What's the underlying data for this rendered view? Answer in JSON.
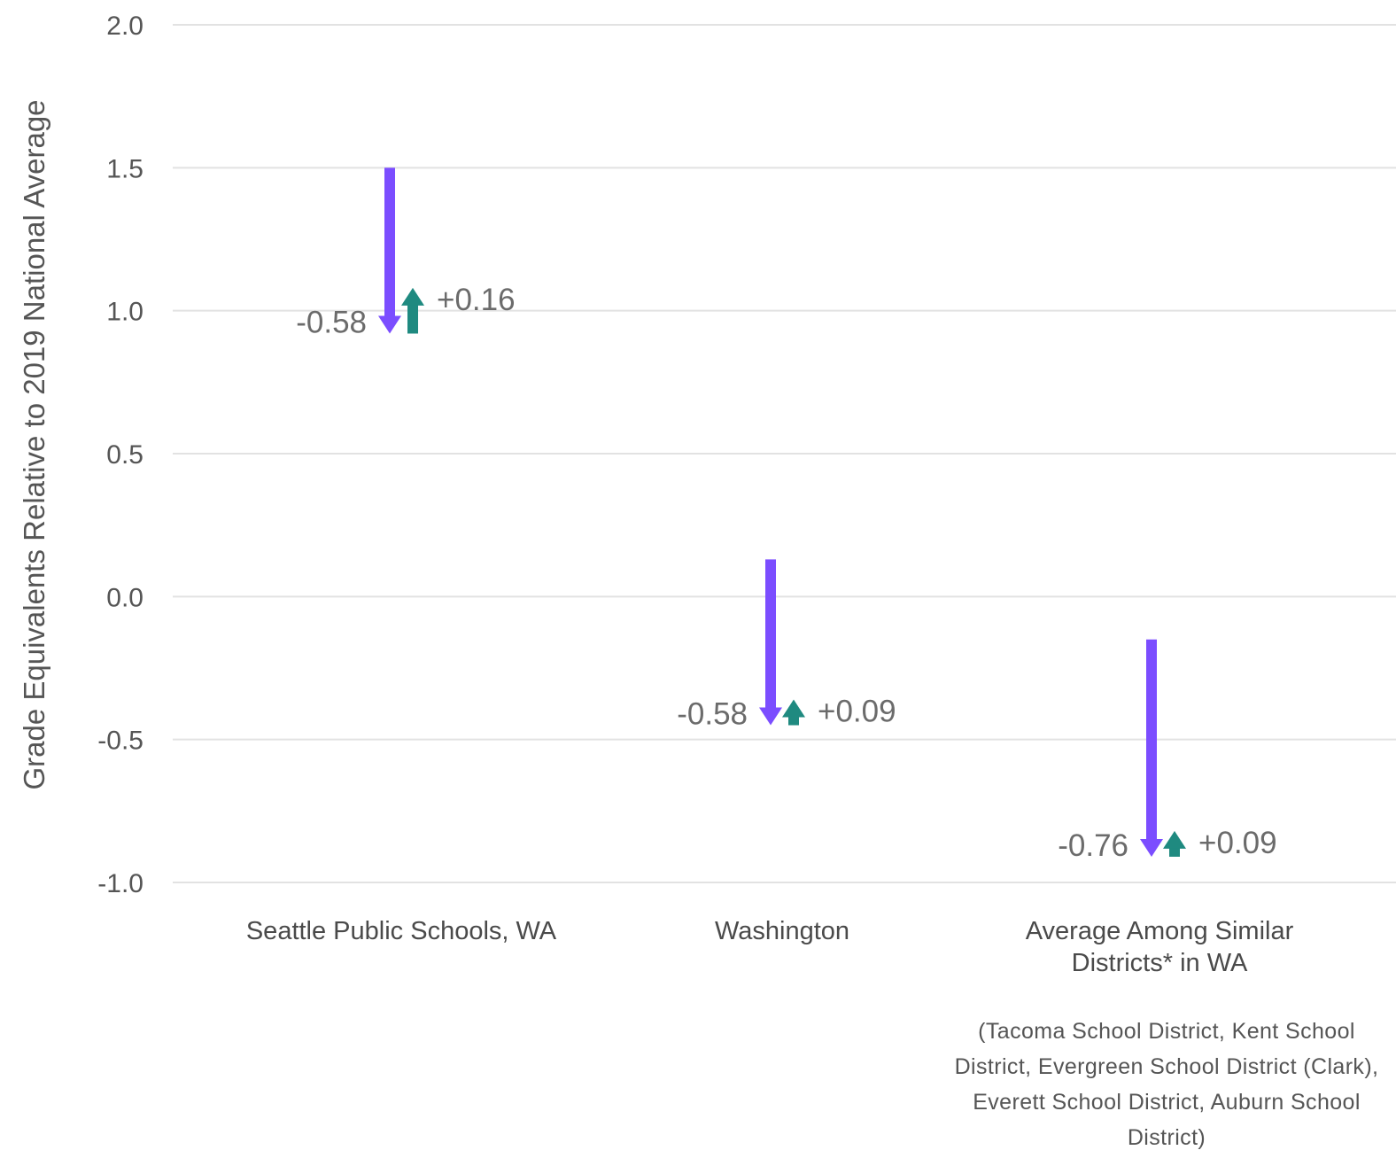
{
  "chart_data": {
    "type": "arrow",
    "ylabel": "Grade Equivalents Relative to 2019 National Average",
    "ylim": [
      -1.0,
      2.0
    ],
    "yticks": [
      "2.0",
      "1.5",
      "1.0",
      "0.5",
      "0.0",
      "-0.5",
      "-1.0"
    ],
    "grid": true,
    "colors": {
      "decline": "#7b4dff",
      "recovery": "#1f8a80"
    },
    "categories": [
      {
        "name_lines": [
          "Seattle Public Schools, WA"
        ],
        "start": 1.5,
        "decline": -0.58,
        "recovery": 0.16,
        "decline_label": "-0.58",
        "recovery_label": "+0.16"
      },
      {
        "name_lines": [
          "Washington"
        ],
        "start": 0.13,
        "decline": -0.58,
        "recovery": 0.09,
        "decline_label": "-0.58",
        "recovery_label": "+0.09"
      },
      {
        "name_lines": [
          "Average Among Similar",
          "Districts* in WA"
        ],
        "start": -0.15,
        "decline": -0.76,
        "recovery": 0.09,
        "decline_label": "-0.76",
        "recovery_label": "+0.09"
      }
    ],
    "footnote_lines": [
      "(Tacoma School District, Kent School",
      "District, Evergreen School District (Clark),",
      "Everett School District, Auburn School",
      "District)"
    ]
  }
}
